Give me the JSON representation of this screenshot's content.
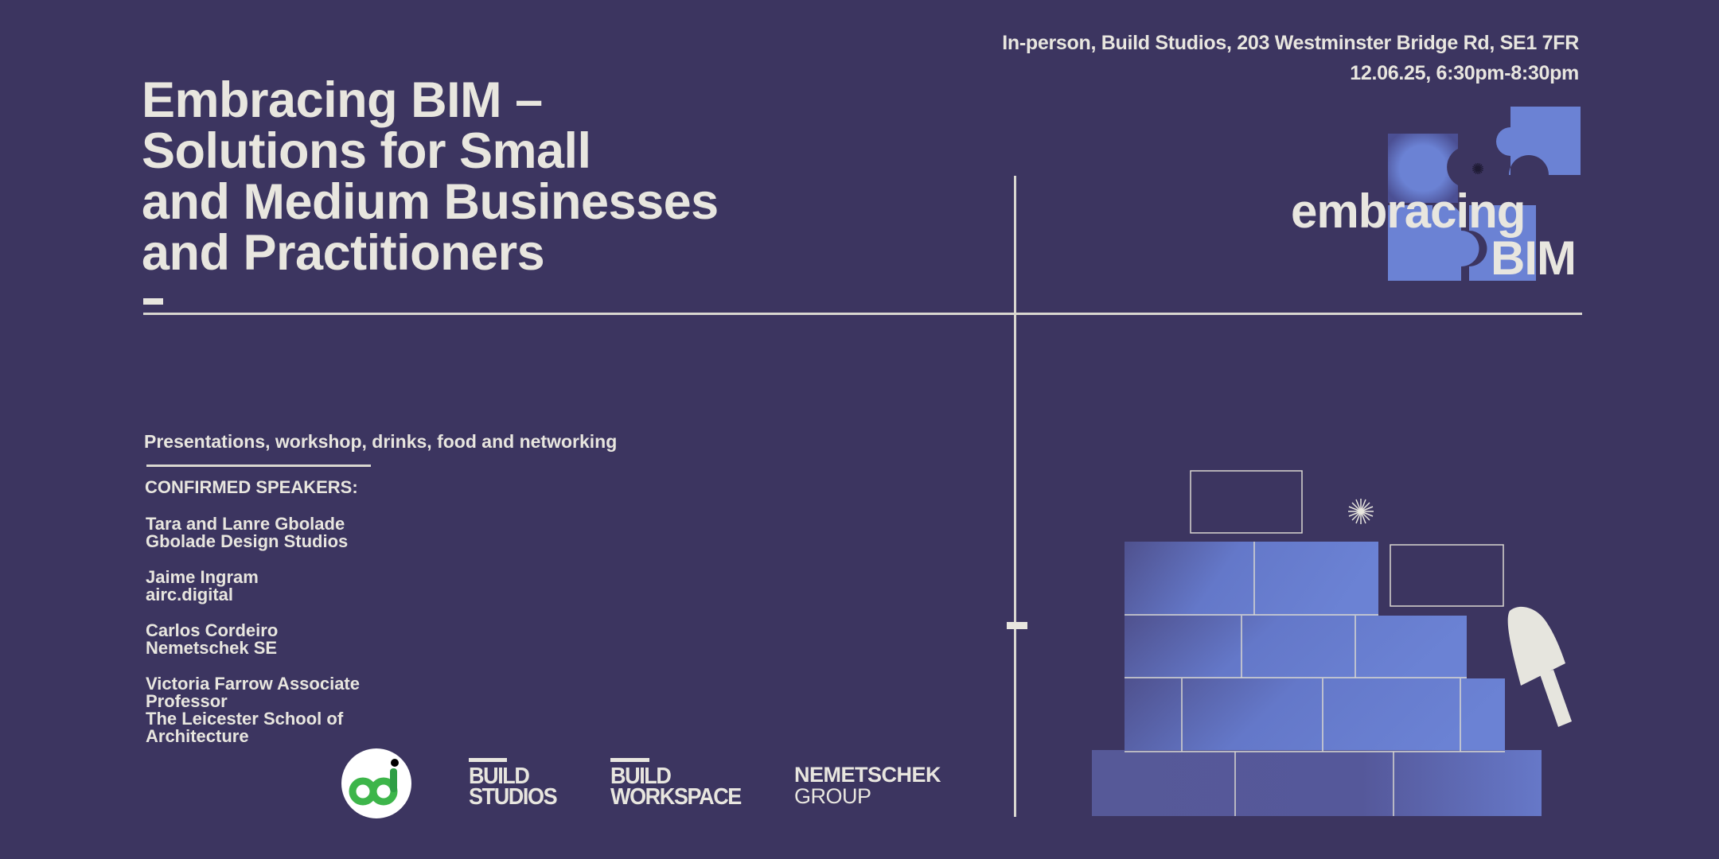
{
  "event": {
    "location": "In-person, Build Studios, 203 Westminster Bridge Rd, SE1 7FR",
    "datetime": "12.06.25, 6:30pm-8:30pm"
  },
  "title": {
    "lines": [
      "Embracing BIM –",
      "Solutions for Small",
      "and Medium Businesses",
      "and Practitioners"
    ]
  },
  "brand_logo": {
    "word1": "embracing",
    "word2": "BIM",
    "icon": "puzzle-pieces-icon"
  },
  "details": {
    "subtitle": "Presentations, workshop, drinks, food and networking",
    "speakers_heading": "CONFIRMED SPEAKERS:",
    "speakers": [
      {
        "lines": [
          "Tara and Lanre Gbolade",
          "Gbolade Design Studios"
        ]
      },
      {
        "lines": [
          "Jaime Ingram",
          "airc.digital"
        ]
      },
      {
        "lines": [
          "Carlos Cordeiro",
          "Nemetschek SE"
        ]
      },
      {
        "lines": [
          "Victoria Farrow Associate",
          "Professor",
          "The Leicester School of",
          "Architecture"
        ]
      }
    ]
  },
  "sponsors": {
    "od_logo": "od-circle-logo",
    "build_studios": [
      "BUILD",
      "STUDIOS"
    ],
    "build_workspace": [
      "BUILD",
      "WORKSPACE"
    ],
    "nemetschek": [
      "NEMETSCHEK",
      "GROUP"
    ]
  },
  "illustration": {
    "icon": "brick-wall-trowel-illustration"
  },
  "colors": {
    "background": "#3c3560",
    "text": "#e8e6df",
    "accent_blue": "#6b82d4",
    "od_green": "#3db54a"
  }
}
